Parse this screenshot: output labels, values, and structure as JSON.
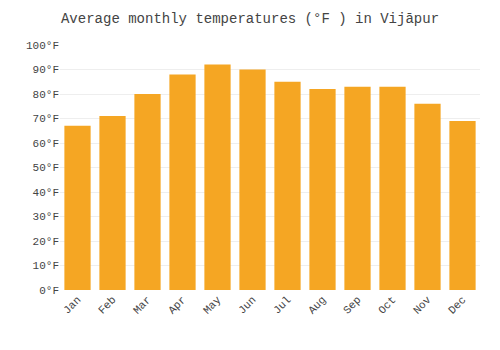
{
  "chart_data": {
    "type": "bar",
    "title": "Average monthly temperatures (°F ) in Vijāpur",
    "categories": [
      "Jan",
      "Feb",
      "Mar",
      "Apr",
      "May",
      "Jun",
      "Jul",
      "Aug",
      "Sep",
      "Oct",
      "Nov",
      "Dec"
    ],
    "values": [
      67,
      71,
      80,
      88,
      92,
      90,
      85,
      82,
      83,
      83,
      76,
      69
    ],
    "color": "#F5A623",
    "ylim": [
      0,
      100
    ],
    "yticks": [
      {
        "value": 0,
        "label": "0°F"
      },
      {
        "value": 10,
        "label": "10°F"
      },
      {
        "value": 20,
        "label": "20°F"
      },
      {
        "value": 30,
        "label": "30°F"
      },
      {
        "value": 40,
        "label": "40°F"
      },
      {
        "value": 50,
        "label": "50°F"
      },
      {
        "value": 60,
        "label": "60°F"
      },
      {
        "value": 70,
        "label": "70°F"
      },
      {
        "value": 80,
        "label": "80°F"
      },
      {
        "value": 90,
        "label": "90°F"
      },
      {
        "value": 100,
        "label": "100°F"
      }
    ],
    "grid": true
  }
}
